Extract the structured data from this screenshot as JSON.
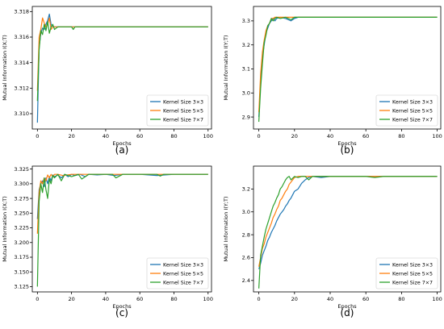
{
  "chart_data": [
    {
      "panel_label": "(a)",
      "type": "line",
      "xlabel": "Epochs",
      "ylabel": "Mutual Information I(X;T)",
      "xlim": [
        -3,
        102
      ],
      "ylim": [
        3.3088,
        3.3184
      ],
      "xticks": [
        "0",
        "20",
        "40",
        "60",
        "80",
        "100"
      ],
      "yticks": [
        "3.310",
        "3.312",
        "3.314",
        "3.316",
        "3.318"
      ],
      "legend": "lower-right",
      "series": [
        {
          "name": "Kernel Size 3×3",
          "color": "#1f77b4",
          "x": [
            0,
            1,
            2,
            3,
            4,
            5,
            6,
            7,
            8,
            9,
            10,
            12,
            15,
            20,
            40,
            60,
            80,
            100
          ],
          "y": [
            3.3093,
            3.3152,
            3.3163,
            3.3167,
            3.3166,
            3.317,
            3.3173,
            3.3178,
            3.317,
            3.3168,
            3.3168,
            3.3168,
            3.3168,
            3.3168,
            3.3168,
            3.3168,
            3.3168,
            3.3168
          ]
        },
        {
          "name": "Kernel Size 5×5",
          "color": "#ff7f0e",
          "x": [
            0,
            1,
            2,
            3,
            4,
            5,
            6,
            7,
            8,
            9,
            10,
            12,
            15,
            20,
            40,
            60,
            80,
            100
          ],
          "y": [
            3.3118,
            3.316,
            3.3166,
            3.3175,
            3.3171,
            3.3168,
            3.317,
            3.3175,
            3.3166,
            3.3168,
            3.3168,
            3.3168,
            3.3168,
            3.3168,
            3.3168,
            3.3168,
            3.3168,
            3.3168
          ]
        },
        {
          "name": "Kernel Size 7×7",
          "color": "#2ca02c",
          "x": [
            0,
            1,
            2,
            3,
            4,
            5,
            6,
            7,
            8,
            9,
            10,
            12,
            15,
            20,
            21,
            22,
            40,
            60,
            80,
            100
          ],
          "y": [
            3.311,
            3.315,
            3.3165,
            3.3162,
            3.317,
            3.3165,
            3.3172,
            3.3163,
            3.3168,
            3.317,
            3.3166,
            3.3168,
            3.3168,
            3.3168,
            3.3166,
            3.3168,
            3.3168,
            3.3168,
            3.3168,
            3.3168
          ]
        }
      ]
    },
    {
      "panel_label": "(b)",
      "type": "line",
      "xlabel": "Epochs",
      "ylabel": "Mutual Information I(Y;T)",
      "xlim": [
        -3,
        102
      ],
      "ylim": [
        2.85,
        3.36
      ],
      "xticks": [
        "0",
        "20",
        "40",
        "60",
        "80",
        "100"
      ],
      "yticks": [
        "2.9",
        "3.0",
        "3.1",
        "3.2",
        "3.3"
      ],
      "legend": "lower-right",
      "series": [
        {
          "name": "Kernel Size 3×3",
          "color": "#1f77b4",
          "x": [
            0,
            1,
            2,
            3,
            4,
            5,
            6,
            7,
            8,
            9,
            10,
            12,
            15,
            18,
            20,
            22,
            40,
            60,
            80,
            100
          ],
          "y": [
            2.9,
            3.05,
            3.15,
            3.2,
            3.25,
            3.27,
            3.29,
            3.3,
            3.31,
            3.3,
            3.31,
            3.315,
            3.31,
            3.3,
            3.31,
            3.315,
            3.315,
            3.315,
            3.315,
            3.315
          ]
        },
        {
          "name": "Kernel Size 5×5",
          "color": "#ff7f0e",
          "x": [
            0,
            1,
            2,
            3,
            4,
            5,
            6,
            7,
            8,
            9,
            10,
            12,
            15,
            20,
            40,
            60,
            80,
            100
          ],
          "y": [
            2.92,
            3.08,
            3.17,
            3.22,
            3.26,
            3.28,
            3.29,
            3.31,
            3.31,
            3.315,
            3.315,
            3.315,
            3.315,
            3.315,
            3.315,
            3.315,
            3.315,
            3.315
          ]
        },
        {
          "name": "Kernel Size 7×7",
          "color": "#2ca02c",
          "x": [
            0,
            1,
            2,
            3,
            4,
            5,
            6,
            7,
            8,
            9,
            10,
            12,
            15,
            18,
            20,
            40,
            60,
            80,
            100
          ],
          "y": [
            2.88,
            3.02,
            3.12,
            3.21,
            3.24,
            3.28,
            3.29,
            3.31,
            3.3,
            3.31,
            3.315,
            3.31,
            3.315,
            3.305,
            3.315,
            3.315,
            3.315,
            3.315,
            3.315
          ]
        }
      ]
    },
    {
      "panel_label": "(c)",
      "type": "line",
      "xlabel": "Epochs",
      "ylabel": "Mutual Information I(X;T)",
      "xlim": [
        -3,
        102
      ],
      "ylim": [
        3.116,
        3.33
      ],
      "xticks": [
        "0",
        "20",
        "40",
        "60",
        "80",
        "100"
      ],
      "yticks": [
        "3.125",
        "3.150",
        "3.175",
        "3.200",
        "3.225",
        "3.250",
        "3.275",
        "3.300",
        "3.325"
      ],
      "legend": "lower-right",
      "series": [
        {
          "name": "Kernel Size 3×3",
          "color": "#1f77b4",
          "x": [
            0,
            1,
            2,
            3,
            4,
            5,
            6,
            7,
            8,
            9,
            10,
            12,
            14,
            16,
            18,
            20,
            22,
            25,
            28,
            30,
            35,
            40,
            45,
            50,
            55,
            60,
            70,
            80,
            90,
            100
          ],
          "y": [
            3.24,
            3.29,
            3.3,
            3.305,
            3.295,
            3.31,
            3.3,
            3.312,
            3.305,
            3.315,
            3.312,
            3.315,
            3.31,
            3.316,
            3.312,
            3.316,
            3.314,
            3.316,
            3.312,
            3.316,
            3.315,
            3.316,
            3.314,
            3.316,
            3.316,
            3.316,
            3.314,
            3.316,
            3.316,
            3.316
          ]
        },
        {
          "name": "Kernel Size 5×5",
          "color": "#ff7f0e",
          "x": [
            0,
            1,
            2,
            3,
            4,
            5,
            6,
            7,
            8,
            9,
            10,
            12,
            15,
            20,
            25,
            30,
            40,
            50,
            60,
            70,
            80,
            90,
            100
          ],
          "y": [
            3.215,
            3.285,
            3.305,
            3.3,
            3.31,
            3.305,
            3.315,
            3.31,
            3.316,
            3.312,
            3.316,
            3.316,
            3.314,
            3.316,
            3.316,
            3.316,
            3.316,
            3.316,
            3.316,
            3.316,
            3.316,
            3.316,
            3.316
          ]
        },
        {
          "name": "Kernel Size 7×7",
          "color": "#2ca02c",
          "x": [
            0,
            1,
            2,
            3,
            4,
            5,
            6,
            7,
            8,
            9,
            10,
            12,
            14,
            16,
            20,
            24,
            26,
            30,
            40,
            44,
            46,
            50,
            60,
            70,
            72,
            74,
            80,
            90,
            100
          ],
          "y": [
            3.125,
            3.27,
            3.3,
            3.285,
            3.31,
            3.29,
            3.275,
            3.308,
            3.3,
            3.314,
            3.31,
            3.316,
            3.305,
            3.316,
            3.312,
            3.316,
            3.308,
            3.316,
            3.316,
            3.316,
            3.31,
            3.316,
            3.316,
            3.316,
            3.313,
            3.316,
            3.316,
            3.316,
            3.316
          ]
        }
      ]
    },
    {
      "panel_label": "(d)",
      "type": "line",
      "xlabel": "Epochs",
      "ylabel": "Mutual Information I(Y;T)",
      "xlim": [
        -3,
        102
      ],
      "ylim": [
        2.3,
        3.4
      ],
      "xticks": [
        "0",
        "20",
        "40",
        "60",
        "80",
        "100"
      ],
      "yticks": [
        "2.4",
        "2.6",
        "2.8",
        "3.0",
        "3.2"
      ],
      "legend": "lower-right",
      "series": [
        {
          "name": "Kernel Size 3×3",
          "color": "#1f77b4",
          "x": [
            0,
            1,
            2,
            3,
            4,
            5,
            6,
            7,
            8,
            9,
            10,
            11,
            12,
            13,
            14,
            15,
            16,
            17,
            18,
            19,
            20,
            22,
            24,
            26,
            28,
            30,
            35,
            40,
            50,
            60,
            70,
            80,
            90,
            100
          ],
          "y": [
            2.5,
            2.55,
            2.62,
            2.66,
            2.7,
            2.75,
            2.78,
            2.82,
            2.85,
            2.88,
            2.92,
            2.95,
            2.98,
            3.0,
            3.02,
            3.05,
            3.07,
            3.1,
            3.12,
            3.15,
            3.18,
            3.2,
            3.25,
            3.28,
            3.3,
            3.31,
            3.3,
            3.31,
            3.31,
            3.31,
            3.31,
            3.31,
            3.31,
            3.31
          ]
        },
        {
          "name": "Kernel Size 5×5",
          "color": "#ff7f0e",
          "x": [
            0,
            1,
            2,
            3,
            4,
            5,
            6,
            7,
            8,
            9,
            10,
            11,
            12,
            13,
            14,
            15,
            16,
            17,
            18,
            19,
            20,
            22,
            25,
            30,
            40,
            50,
            60,
            70,
            80,
            90,
            100
          ],
          "y": [
            2.52,
            2.6,
            2.68,
            2.72,
            2.78,
            2.82,
            2.86,
            2.9,
            2.95,
            2.98,
            3.02,
            3.05,
            3.1,
            3.12,
            3.15,
            3.18,
            3.2,
            3.24,
            3.26,
            3.28,
            3.3,
            3.31,
            3.31,
            3.31,
            3.31,
            3.31,
            3.31,
            3.31,
            3.31,
            3.31,
            3.31
          ]
        },
        {
          "name": "Kernel Size 7×7",
          "color": "#2ca02c",
          "x": [
            0,
            1,
            2,
            3,
            4,
            5,
            6,
            7,
            8,
            9,
            10,
            11,
            12,
            13,
            14,
            15,
            16,
            17,
            18,
            20,
            22,
            24,
            26,
            28,
            30,
            40,
            50,
            60,
            65,
            70,
            80,
            90,
            100
          ],
          "y": [
            2.33,
            2.62,
            2.7,
            2.78,
            2.85,
            2.9,
            2.95,
            3.0,
            3.05,
            3.08,
            3.12,
            3.15,
            3.2,
            3.22,
            3.25,
            3.28,
            3.3,
            3.31,
            3.28,
            3.31,
            3.3,
            3.31,
            3.31,
            3.28,
            3.31,
            3.31,
            3.31,
            3.31,
            3.3,
            3.31,
            3.31,
            3.31,
            3.31
          ]
        }
      ]
    }
  ]
}
